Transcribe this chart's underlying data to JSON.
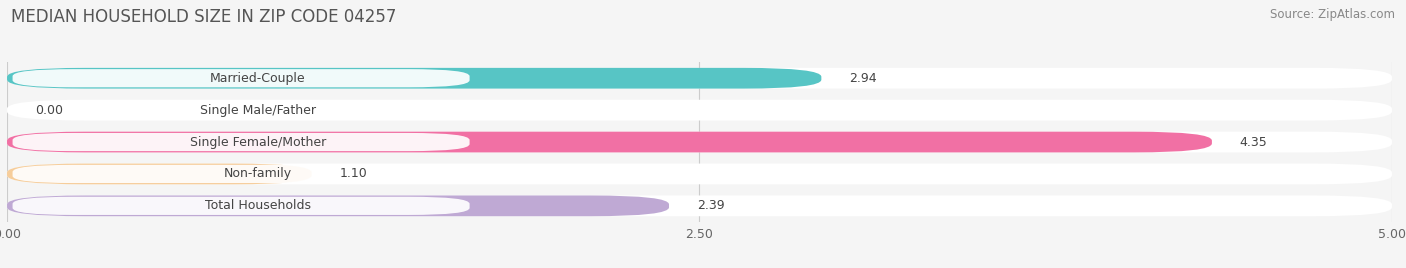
{
  "title": "MEDIAN HOUSEHOLD SIZE IN ZIP CODE 04257",
  "source": "Source: ZipAtlas.com",
  "categories": [
    "Married-Couple",
    "Single Male/Father",
    "Single Female/Mother",
    "Non-family",
    "Total Households"
  ],
  "values": [
    2.94,
    0.0,
    4.35,
    1.1,
    2.39
  ],
  "bar_colors": [
    "#45bfbf",
    "#a8c0e8",
    "#f0609a",
    "#f5c890",
    "#b8a0d0"
  ],
  "background_color": "#f5f5f5",
  "xlim": [
    0,
    5.0
  ],
  "xticks": [
    0.0,
    2.5,
    5.0
  ],
  "xtick_labels": [
    "0.00",
    "2.50",
    "5.00"
  ],
  "title_fontsize": 12,
  "source_fontsize": 8.5,
  "label_fontsize": 9,
  "value_fontsize": 9
}
